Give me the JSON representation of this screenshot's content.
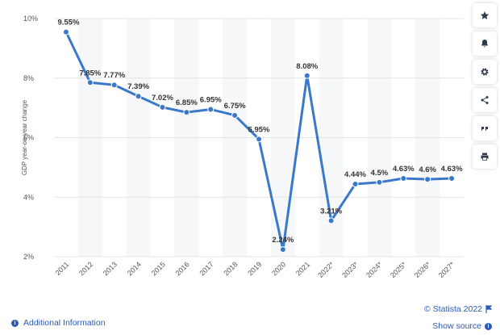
{
  "chart_data": {
    "type": "line",
    "title": "",
    "xlabel": "",
    "ylabel": "GDP year-on-year change",
    "categories": [
      "2011",
      "2012",
      "2013",
      "2014",
      "2015",
      "2016",
      "2017",
      "2018",
      "2019",
      "2020",
      "2021",
      "2022*",
      "2023*",
      "2024*",
      "2025*",
      "2026*",
      "2027*"
    ],
    "values": [
      9.55,
      7.85,
      7.77,
      7.39,
      7.02,
      6.85,
      6.95,
      6.75,
      5.95,
      2.24,
      8.08,
      3.21,
      4.44,
      4.5,
      4.63,
      4.6,
      4.63
    ],
    "data_labels": [
      "9.55%",
      "7.85%",
      "7.77%",
      "7.39%",
      "7.02%",
      "6.85%",
      "6.95%",
      "6.75%",
      "5.95%",
      "2.24%",
      "8.08%",
      "3.21%",
      "4.44%",
      "4.5%",
      "4.63%",
      "4.6%",
      "4.63%"
    ],
    "yticks": [
      2,
      4,
      6,
      8,
      10
    ],
    "ytick_labels": [
      "2%",
      "4%",
      "6%",
      "8%",
      "10%"
    ],
    "ylim": [
      2,
      10
    ],
    "grid": true,
    "line_color": "#3a78c9"
  },
  "sidebar": {
    "buttons": [
      {
        "name": "star-icon"
      },
      {
        "name": "bell-icon"
      },
      {
        "name": "gear-icon"
      },
      {
        "name": "share-icon"
      },
      {
        "name": "quote-icon"
      },
      {
        "name": "print-icon"
      }
    ]
  },
  "footer": {
    "additional_info": "Additional Information",
    "copyright": "© Statista 2022",
    "show_source": "Show source"
  }
}
